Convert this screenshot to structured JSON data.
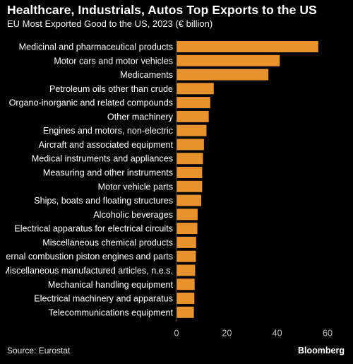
{
  "title": "Healthcare, Industrials, Autos Top Exports to the US",
  "subtitle": "EU Most Exported Good to the US, 2023 (€ billion)",
  "source": "Source: Eurostat",
  "brand": "Bloomberg",
  "colors": {
    "bar": "#E8922E",
    "background": "#000000",
    "text": "#FFFFFF",
    "axis": "#BBBBBB"
  },
  "chart_data": {
    "type": "bar",
    "orientation": "horizontal",
    "title": "Healthcare, Industrials, Autos Top Exports to the US",
    "subtitle": "EU Most Exported Good to the US, 2023 (€ billion)",
    "xlabel": "",
    "ylabel": "",
    "xlim": [
      0,
      60
    ],
    "ticks": [
      0,
      20,
      40,
      60
    ],
    "grid": false,
    "legend": "none",
    "categories": [
      "Medicinal and pharmaceutical products",
      "Motor cars and motor vehicles",
      "Medicaments",
      "Petroleum oils other than crude",
      "Organo-inorganic and related compounds",
      "Other machinery",
      "Engines and motors, non-electric",
      "Aircraft and associated equipment",
      "Medical instruments and appliances",
      "Measuring and other instruments",
      "Motor vehicle parts",
      "Ships, boats and floating structures",
      "Alcoholic beverages",
      "Electrical apparatus for electrical circuits",
      "Miscellaneous chemical products",
      "Internal combustion piston engines and parts",
      "Miscellaneous manufactured articles, n.e.s.",
      "Mechanical handling equipment",
      "Electrical machinery and apparatus",
      "Telecommunications equipment"
    ],
    "values": [
      56.3,
      41.0,
      36.5,
      14.8,
      13.4,
      12.8,
      11.9,
      10.9,
      10.5,
      10.2,
      10.2,
      9.8,
      8.4,
      8.3,
      7.8,
      7.7,
      7.4,
      7.2,
      7.1,
      6.9
    ]
  }
}
